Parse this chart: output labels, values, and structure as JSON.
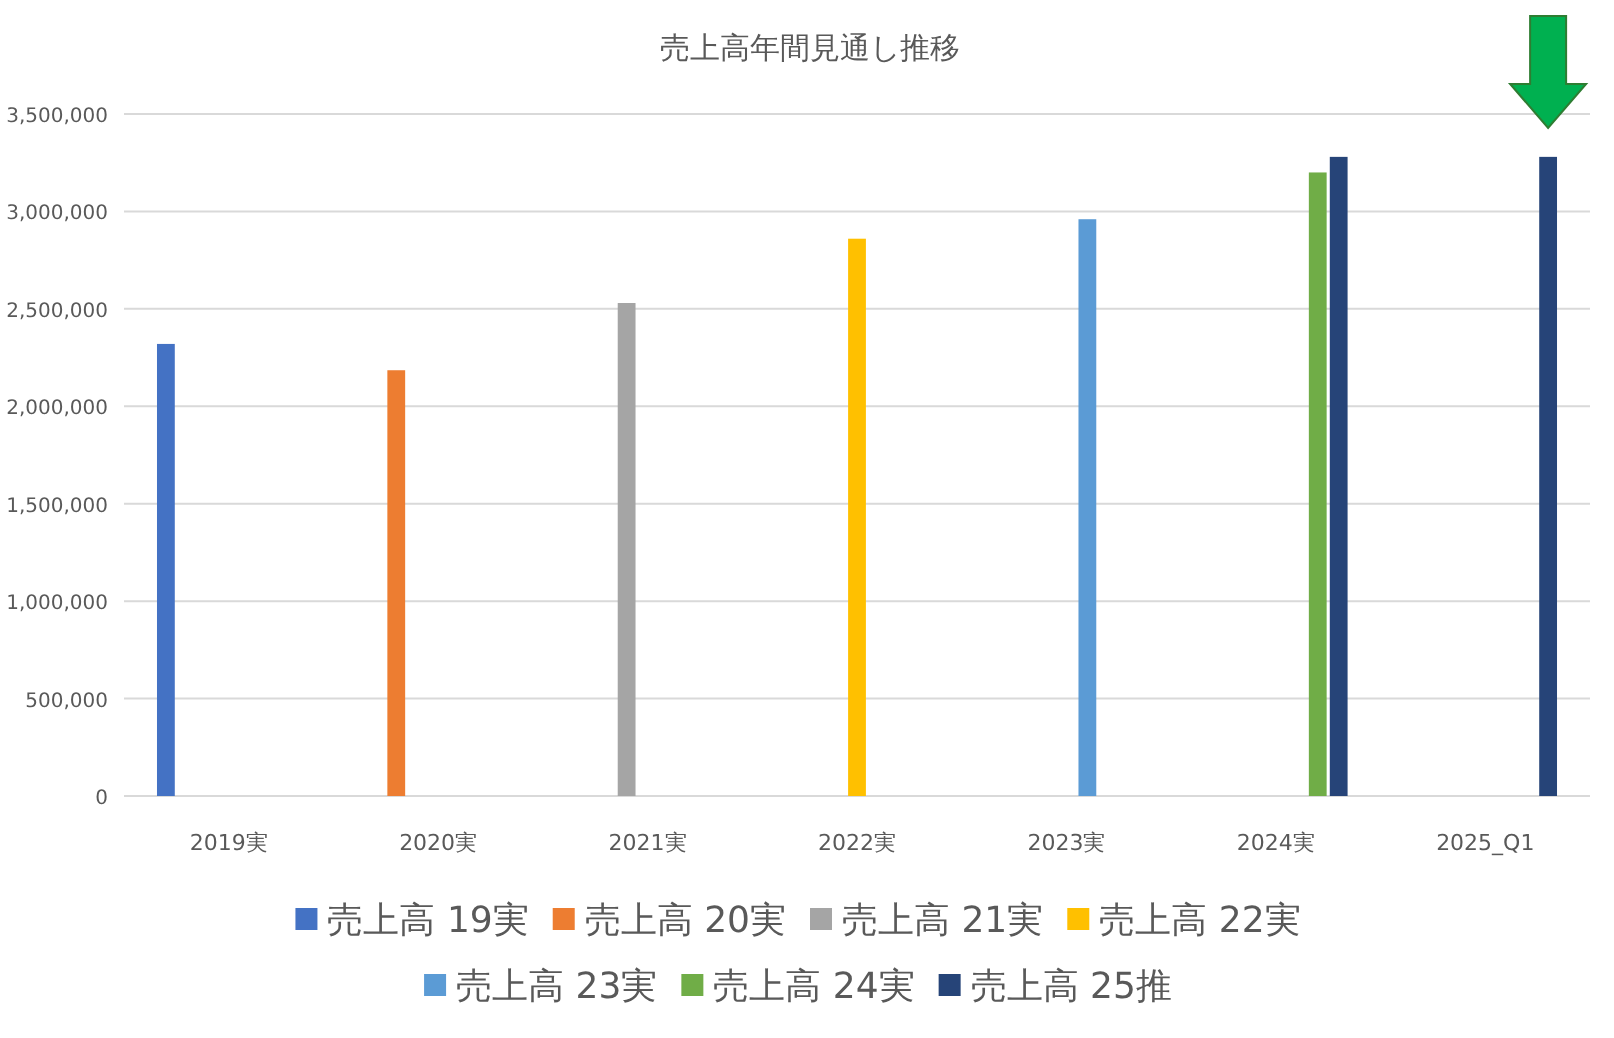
{
  "chart_data": {
    "type": "bar",
    "title": "売上高年間見通し推移",
    "categories": [
      "2019実",
      "2020実",
      "2021実",
      "2022実",
      "2023実",
      "2024実",
      "2025_Q1"
    ],
    "series": [
      {
        "name": "売上高 19実",
        "color": "#4472c4",
        "values": [
          2320000,
          null,
          null,
          null,
          null,
          null,
          null
        ]
      },
      {
        "name": "売上高 20実",
        "color": "#ed7d31",
        "values": [
          null,
          2185000,
          null,
          null,
          null,
          null,
          null
        ]
      },
      {
        "name": "売上高 21実",
        "color": "#a5a5a5",
        "values": [
          null,
          null,
          2530000,
          null,
          null,
          null,
          null
        ]
      },
      {
        "name": "売上高 22実",
        "color": "#ffc000",
        "values": [
          null,
          null,
          null,
          2860000,
          null,
          null,
          null
        ]
      },
      {
        "name": "売上高 23実",
        "color": "#5b9bd5",
        "values": [
          null,
          null,
          null,
          null,
          2960000,
          null,
          null
        ]
      },
      {
        "name": "売上高 24実",
        "color": "#70ad47",
        "values": [
          null,
          null,
          null,
          null,
          null,
          3200000,
          null
        ]
      },
      {
        "name": "売上高 25推",
        "color": "#264478",
        "values": [
          null,
          null,
          null,
          null,
          null,
          3280000,
          3280000
        ]
      }
    ],
    "ylim": [
      0,
      3500000
    ],
    "yticks": [
      {
        "value": 0,
        "label": "0"
      },
      {
        "value": 500000,
        "label": "500,000"
      },
      {
        "value": 1000000,
        "label": "1,000,000"
      },
      {
        "value": 1500000,
        "label": "1,500,000"
      },
      {
        "value": 2000000,
        "label": "2,000,000"
      },
      {
        "value": 2500000,
        "label": "2,500,000"
      },
      {
        "value": 3000000,
        "label": "3,000,000"
      },
      {
        "value": 3500000,
        "label": "3,500,000"
      }
    ],
    "grid": "y",
    "legend": "bottom"
  }
}
